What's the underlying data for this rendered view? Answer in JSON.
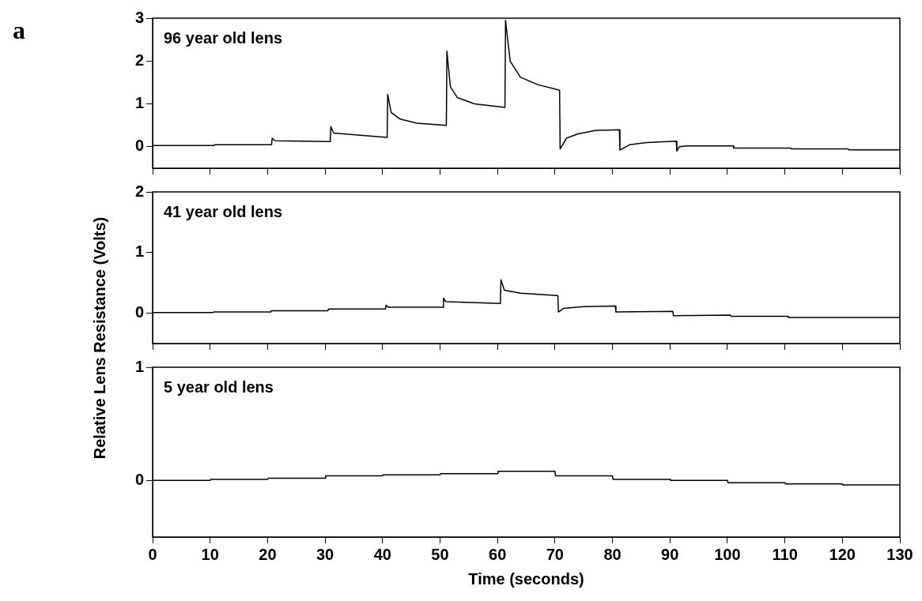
{
  "chart_data": [
    {
      "type": "line",
      "annotations": [
        "a",
        "96 year old lens"
      ],
      "ylabel": "Relative Lens Resistance (Volts)",
      "xlim": [
        0,
        130
      ],
      "xticks": [
        0,
        10,
        20,
        30,
        40,
        50,
        60,
        70,
        80,
        90,
        100,
        110,
        120,
        130
      ],
      "ylim": [
        -0.5,
        3
      ],
      "yticks": [
        0,
        1,
        2,
        3
      ],
      "tick_labels": "y",
      "grid": false,
      "series": [
        {
          "color": "#000000",
          "x": [
            0,
            10.7,
            10.8,
            20.7,
            20.8,
            21.3,
            30.9,
            31.0,
            31.5,
            40.8,
            40.9,
            41.5,
            43,
            46,
            51.1,
            51.2,
            51.8,
            53,
            56,
            61.3,
            61.4,
            62.2,
            64,
            67,
            70.8,
            70.9,
            72,
            74,
            77,
            81.2,
            81.3,
            83,
            86,
            91.1,
            91.2,
            91.6,
            93,
            101,
            101.1,
            111,
            111.1,
            121,
            121.1,
            130
          ],
          "values": [
            0.03,
            0.03,
            0.05,
            0.05,
            0.2,
            0.14,
            0.12,
            0.47,
            0.32,
            0.22,
            1.22,
            0.8,
            0.65,
            0.55,
            0.5,
            2.23,
            1.4,
            1.15,
            1.0,
            0.92,
            2.95,
            2.0,
            1.62,
            1.45,
            1.32,
            -0.05,
            0.2,
            0.3,
            0.38,
            0.4,
            -0.08,
            0.05,
            0.1,
            0.13,
            -0.1,
            0.0,
            0.02,
            0.02,
            -0.03,
            -0.03,
            -0.05,
            -0.05,
            -0.07,
            -0.07
          ]
        }
      ]
    },
    {
      "type": "line",
      "annotations": [
        "41 year old lens"
      ],
      "xlim": [
        0,
        130
      ],
      "xticks": [
        0,
        10,
        20,
        30,
        40,
        50,
        60,
        70,
        80,
        90,
        100,
        110,
        120,
        130
      ],
      "ylim": [
        -0.5,
        2
      ],
      "yticks": [
        0,
        1,
        2
      ],
      "tick_labels": "y",
      "grid": false,
      "series": [
        {
          "color": "#000000",
          "x": [
            0,
            10.5,
            10.6,
            20.5,
            20.6,
            30.5,
            30.6,
            40.5,
            40.6,
            41,
            50.5,
            50.6,
            51,
            60.5,
            60.6,
            61.2,
            64,
            70.5,
            70.6,
            71.5,
            75,
            80.5,
            80.6,
            90.5,
            90.6,
            100.5,
            100.6,
            110.5,
            110.6,
            130
          ],
          "values": [
            0.01,
            0.01,
            0.02,
            0.02,
            0.04,
            0.04,
            0.07,
            0.07,
            0.13,
            0.1,
            0.1,
            0.25,
            0.19,
            0.16,
            0.55,
            0.38,
            0.33,
            0.29,
            0.02,
            0.08,
            0.11,
            0.12,
            0.02,
            0.03,
            -0.04,
            -0.03,
            -0.05,
            -0.05,
            -0.07,
            -0.07
          ]
        }
      ]
    },
    {
      "type": "line",
      "annotations": [
        "5 year old lens"
      ],
      "xlabel": "Time (seconds)",
      "xlim": [
        0,
        130
      ],
      "xticks": [
        0,
        10,
        20,
        30,
        40,
        50,
        60,
        70,
        80,
        90,
        100,
        110,
        120,
        130
      ],
      "ylim": [
        -0.5,
        1
      ],
      "yticks": [
        0,
        1
      ],
      "grid": false,
      "series": [
        {
          "color": "#000000",
          "x": [
            0,
            10,
            10.1,
            20,
            20.1,
            30,
            30.1,
            40,
            40.1,
            50,
            50.1,
            60,
            60.1,
            70,
            70.1,
            80,
            80.1,
            90,
            90.1,
            100,
            100.1,
            110,
            110.1,
            120,
            120.1,
            130
          ],
          "values": [
            0,
            0,
            0.01,
            0.01,
            0.02,
            0.02,
            0.04,
            0.04,
            0.05,
            0.05,
            0.06,
            0.06,
            0.08,
            0.08,
            0.04,
            0.04,
            0.01,
            0.01,
            0,
            0,
            -0.02,
            -0.02,
            -0.03,
            -0.03,
            -0.04,
            -0.04
          ]
        }
      ]
    }
  ]
}
